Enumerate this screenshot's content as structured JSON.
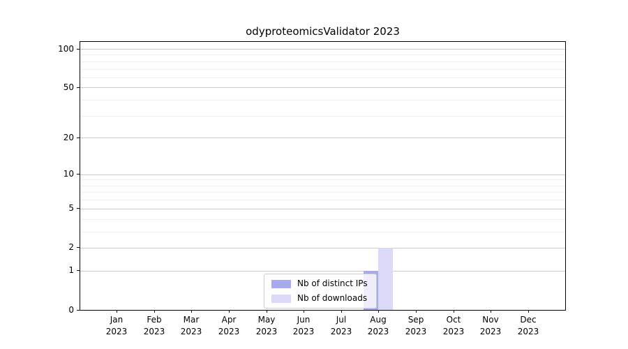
{
  "title": "odyproteomicsValidator 2023",
  "chart_data": {
    "type": "bar",
    "title": "odyproteomicsValidator 2023",
    "categories": [
      "Jan 2023",
      "Feb 2023",
      "Mar 2023",
      "Apr 2023",
      "May 2023",
      "Jun 2023",
      "Jul 2023",
      "Aug 2023",
      "Sep 2023",
      "Oct 2023",
      "Nov 2023",
      "Dec 2023"
    ],
    "months": [
      "Jan",
      "Feb",
      "Mar",
      "Apr",
      "May",
      "Jun",
      "Jul",
      "Aug",
      "Sep",
      "Oct",
      "Nov",
      "Dec"
    ],
    "year": "2023",
    "series": [
      {
        "name": "Nb of distinct IPs",
        "key": "distinct-ips",
        "color": "#a9a9ee",
        "values": [
          0,
          0,
          0,
          0,
          0,
          0,
          0,
          1,
          0,
          0,
          0,
          0
        ]
      },
      {
        "name": "Nb of downloads",
        "key": "downloads",
        "color": "#dadaf8",
        "values": [
          0,
          0,
          0,
          0,
          0,
          0,
          0,
          2,
          0,
          0,
          0,
          0
        ]
      }
    ],
    "y_axis": {
      "scale": "log1p",
      "ticks": [
        0,
        1,
        2,
        5,
        10,
        20,
        50,
        100
      ],
      "minor_ticks": [
        3,
        4,
        6,
        7,
        8,
        9,
        30,
        40,
        60,
        70,
        80,
        90
      ],
      "ylim": [
        0,
        115
      ]
    },
    "xlabel": "",
    "ylabel": "",
    "grid": {
      "on": true,
      "major_color": "#c9c9c9",
      "minor_color": "#eeeeee"
    },
    "legend": {
      "position": "lower-center",
      "background": "rgba(255,255,255,0.8)",
      "border_color": "#cfcfcf"
    },
    "colors": {
      "spine": "#000000",
      "text": "#000000"
    }
  }
}
